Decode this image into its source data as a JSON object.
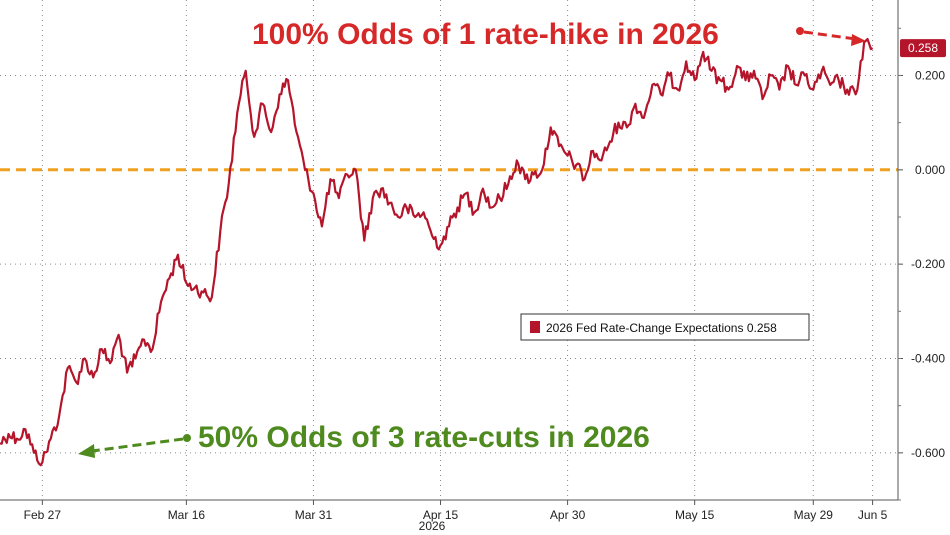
{
  "chart_data": {
    "type": "line",
    "x_ticks": [
      "Feb 27",
      "Mar 16",
      "Mar 31",
      "Apr 15",
      "Apr 30",
      "May 15",
      "May 29",
      "Jun 5"
    ],
    "x_year_label": "2026",
    "y_ticks": [
      "0.200",
      "0.000",
      "-0.200",
      "-0.400",
      "-0.600"
    ],
    "ylim": [
      -0.7,
      0.36
    ],
    "reference_line": 0,
    "grid": true,
    "legend_position": "middle-right",
    "series": [
      {
        "name": "2026 Fed Rate-Change Expectations",
        "last_value": "0.258",
        "color": "#b5152b",
        "points": [
          [
            "Feb 22",
            -0.58
          ],
          [
            "Feb 23",
            -0.56
          ],
          [
            "Feb 24",
            -0.57
          ],
          [
            "Feb 25",
            -0.55
          ],
          [
            "Feb 26",
            -0.6
          ],
          [
            "Feb 27",
            -0.62
          ],
          [
            "Feb 28",
            -0.57
          ],
          [
            "Mar 1",
            -0.52
          ],
          [
            "Mar 2",
            -0.42
          ],
          [
            "Mar 3",
            -0.45
          ],
          [
            "Mar 4",
            -0.4
          ],
          [
            "Mar 5",
            -0.44
          ],
          [
            "Mar 6",
            -0.38
          ],
          [
            "Mar 7",
            -0.41
          ],
          [
            "Mar 8",
            -0.35
          ],
          [
            "Mar 9",
            -0.43
          ],
          [
            "Mar 10",
            -0.4
          ],
          [
            "Mar 11",
            -0.36
          ],
          [
            "Mar 12",
            -0.38
          ],
          [
            "Mar 13",
            -0.28
          ],
          [
            "Mar 14",
            -0.23
          ],
          [
            "Mar 15",
            -0.18
          ],
          [
            "Mar 16",
            -0.24
          ],
          [
            "Mar 17",
            -0.25
          ],
          [
            "Mar 18",
            -0.26
          ],
          [
            "Mar 19",
            -0.27
          ],
          [
            "Mar 20",
            -0.13
          ],
          [
            "Mar 21",
            -0.03
          ],
          [
            "Mar 22",
            0.12
          ],
          [
            "Mar 23",
            0.21
          ],
          [
            "Mar 24",
            0.07
          ],
          [
            "Mar 25",
            0.14
          ],
          [
            "Mar 26",
            0.08
          ],
          [
            "Mar 27",
            0.16
          ],
          [
            "Mar 28",
            0.19
          ],
          [
            "Mar 29",
            0.08
          ],
          [
            "Mar 30",
            0.0
          ],
          [
            "Mar 31",
            -0.05
          ],
          [
            "Apr 1",
            -0.12
          ],
          [
            "Apr 2",
            -0.02
          ],
          [
            "Apr 3",
            -0.06
          ],
          [
            "Apr 4",
            -0.01
          ],
          [
            "Apr 5",
            0.0
          ],
          [
            "Apr 6",
            -0.15
          ],
          [
            "Apr 7",
            -0.06
          ],
          [
            "Apr 8",
            -0.04
          ],
          [
            "Apr 9",
            -0.07
          ],
          [
            "Apr 10",
            -0.1
          ],
          [
            "Apr 11",
            -0.08
          ],
          [
            "Apr 12",
            -0.1
          ],
          [
            "Apr 13",
            -0.09
          ],
          [
            "Apr 14",
            -0.14
          ],
          [
            "Apr 15",
            -0.16
          ],
          [
            "Apr 16",
            -0.12
          ],
          [
            "Apr 17",
            -0.08
          ],
          [
            "Apr 18",
            -0.05
          ],
          [
            "Apr 19",
            -0.09
          ],
          [
            "Apr 20",
            -0.04
          ],
          [
            "Apr 21",
            -0.08
          ],
          [
            "Apr 22",
            -0.06
          ],
          [
            "Apr 23",
            -0.03
          ],
          [
            "Apr 24",
            0.02
          ],
          [
            "Apr 25",
            -0.02
          ],
          [
            "Apr 26",
            -0.01
          ],
          [
            "Apr 27",
            0.0
          ],
          [
            "Apr 28",
            0.09
          ],
          [
            "Apr 29",
            0.05
          ],
          [
            "Apr 30",
            0.03
          ],
          [
            "May 1",
            0.01
          ],
          [
            "May 2",
            -0.02
          ],
          [
            "May 3",
            0.04
          ],
          [
            "May 4",
            0.02
          ],
          [
            "May 5",
            0.06
          ],
          [
            "May 6",
            0.1
          ],
          [
            "May 7",
            0.09
          ],
          [
            "May 8",
            0.14
          ],
          [
            "May 9",
            0.11
          ],
          [
            "May 10",
            0.18
          ],
          [
            "May 11",
            0.16
          ],
          [
            "May 12",
            0.2
          ],
          [
            "May 13",
            0.17
          ],
          [
            "May 14",
            0.23
          ],
          [
            "May 15",
            0.19
          ],
          [
            "May 16",
            0.25
          ],
          [
            "May 17",
            0.21
          ],
          [
            "May 18",
            0.19
          ],
          [
            "May 19",
            0.17
          ],
          [
            "May 20",
            0.22
          ],
          [
            "May 21",
            0.19
          ],
          [
            "May 22",
            0.21
          ],
          [
            "May 23",
            0.15
          ],
          [
            "May 24",
            0.2
          ],
          [
            "May 25",
            0.17
          ],
          [
            "May 26",
            0.22
          ],
          [
            "May 27",
            0.18
          ],
          [
            "May 28",
            0.2
          ],
          [
            "May 29",
            0.17
          ],
          [
            "May 30",
            0.21
          ],
          [
            "May 31",
            0.18
          ],
          [
            "Jun 1",
            0.19
          ],
          [
            "Jun 2",
            0.17
          ],
          [
            "Jun 3",
            0.16
          ],
          [
            "Jun 4",
            0.27
          ],
          [
            "Jun 5",
            0.258
          ]
        ]
      }
    ],
    "annotations": [
      {
        "text": "100% Odds of 1 rate-hike in 2026",
        "color": "#d62828"
      },
      {
        "text": "50% Odds of 3 rate-cuts in 2026",
        "color": "#4e8a1e"
      }
    ]
  }
}
